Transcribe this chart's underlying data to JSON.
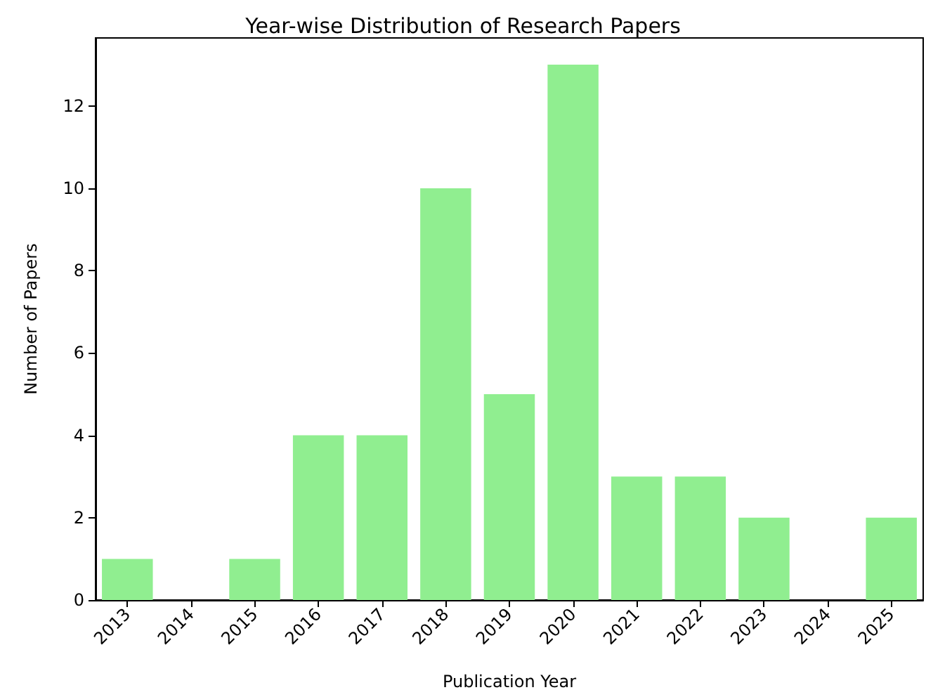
{
  "chart_data": {
    "type": "bar",
    "title": "Year-wise Distribution of Research Papers",
    "xlabel": "Publication Year",
    "ylabel": "Number of Papers",
    "categories": [
      "2013",
      "2014",
      "2015",
      "2016",
      "2017",
      "2018",
      "2019",
      "2020",
      "2021",
      "2022",
      "2023",
      "2024",
      "2025"
    ],
    "values": [
      1,
      0,
      1,
      4,
      4,
      10,
      5,
      13,
      3,
      3,
      2,
      0,
      2
    ],
    "color": "#90ee90",
    "ylim": [
      0,
      13.65
    ],
    "yticks": [
      0,
      2,
      4,
      6,
      8,
      10,
      12
    ],
    "grid": false
  }
}
